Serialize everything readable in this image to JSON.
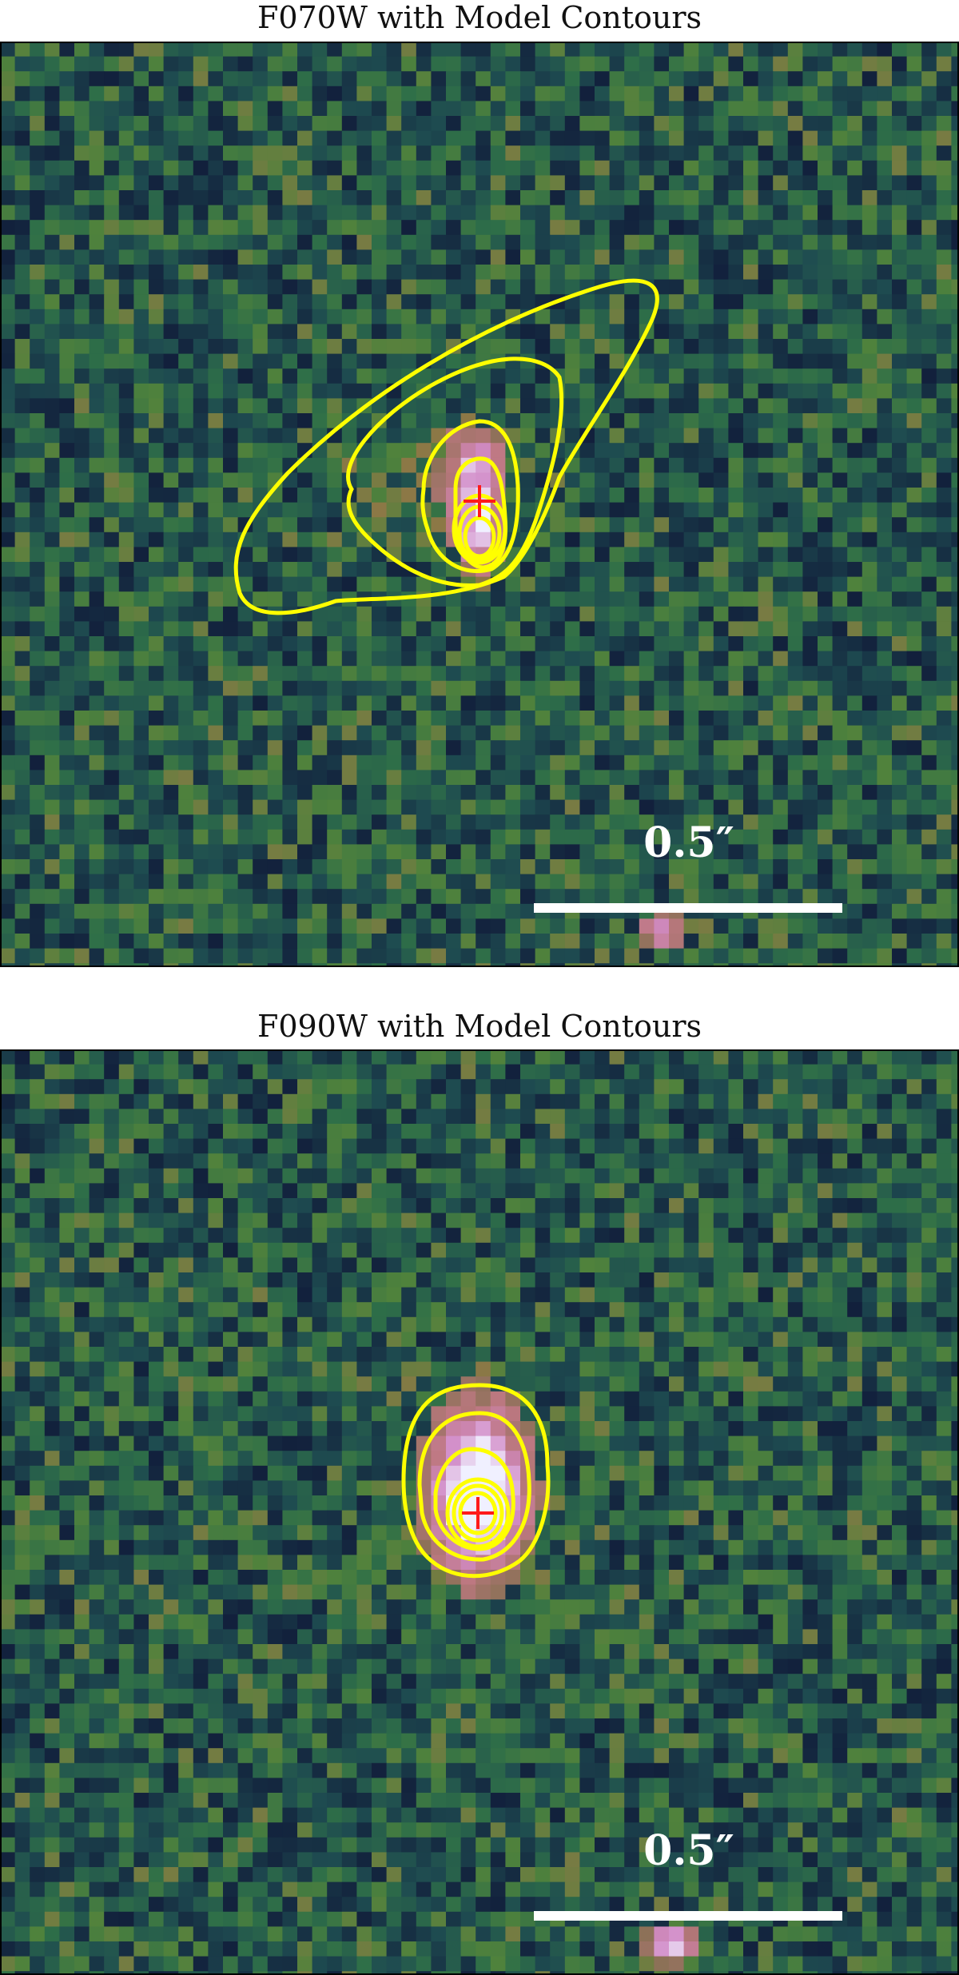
{
  "panels": [
    {
      "id": "f070w",
      "title": "F070W with Model Contours",
      "scale_bar_label": "0.5″",
      "noise_seed": 7
    },
    {
      "id": "f090w",
      "title": "F090W with Model Contours",
      "scale_bar_label": "0.5″",
      "noise_seed": 19
    }
  ],
  "colors": {
    "contour": "#ffff00",
    "center_marker": "#ff1a1a",
    "scale_bar": "#ffffff",
    "background_mid": "#2e6b4a"
  }
}
